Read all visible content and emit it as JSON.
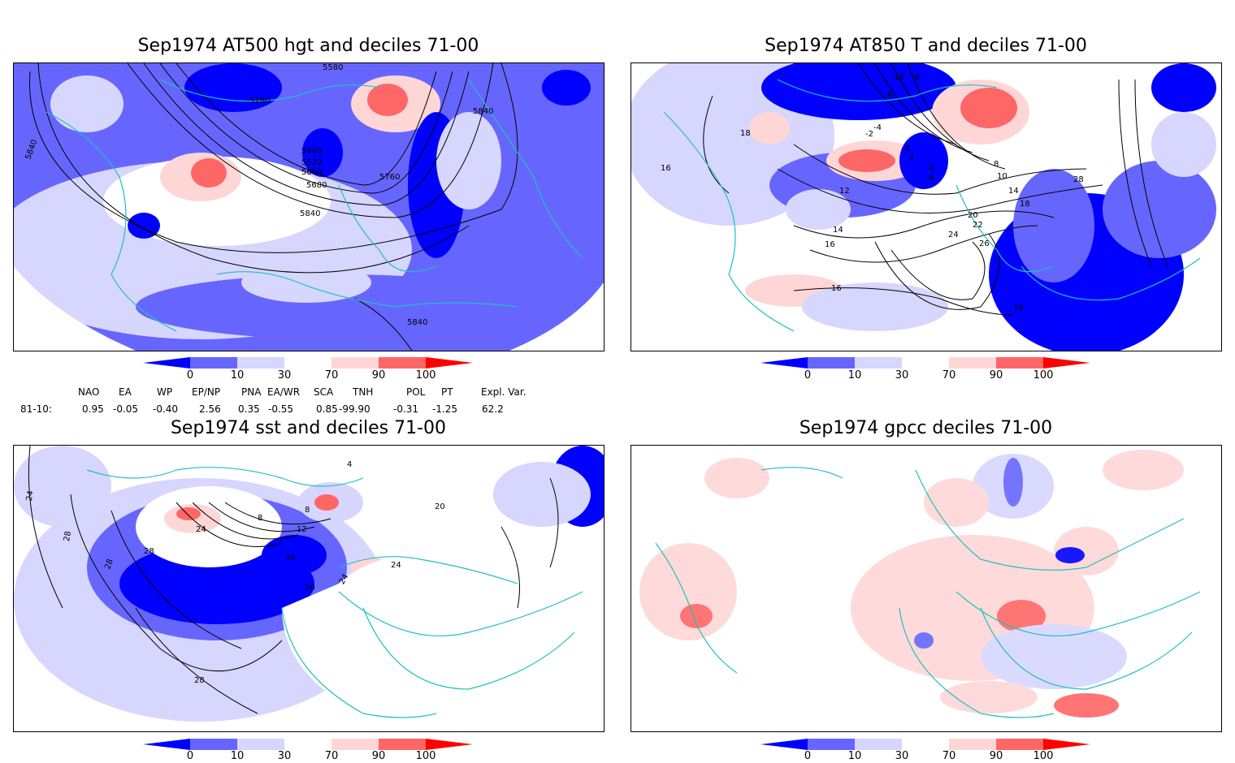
{
  "panels": [
    {
      "title": "Sep1974 AT500 hgt and deciles 71-00",
      "contour_labels": [
        "5280",
        "5440",
        "5520",
        "5600",
        "5680",
        "5760",
        "5840",
        "5840",
        "5840",
        "5840",
        "5580"
      ]
    },
    {
      "title": "Sep1974 AT850 T and deciles 71-00",
      "contour_labels": [
        "-10",
        "-8",
        "-6",
        "-4",
        "-2",
        "0",
        "2",
        "4",
        "6",
        "8",
        "10",
        "12",
        "14",
        "16",
        "18",
        "20",
        "22",
        "24",
        "26",
        "28",
        "18",
        "16",
        "14",
        "16",
        "16"
      ]
    },
    {
      "title": "Sep1974 sst and deciles 71-00",
      "contour_labels": [
        "24",
        "28",
        "28",
        "28",
        "24",
        "16",
        "20",
        "12",
        "8",
        "8",
        "4",
        "20",
        "24",
        "24",
        "28"
      ]
    },
    {
      "title": "Sep1974 gpcc deciles 71-00",
      "contour_labels": []
    }
  ],
  "colorbar": {
    "ticks": [
      "0",
      "10",
      "30",
      "70",
      "90",
      "100"
    ],
    "colors": [
      "#0000ff",
      "#6666ff",
      "#d6d6ff",
      "#ffffff",
      "#ffd6d6",
      "#ff6666",
      "#ff0000"
    ]
  },
  "indices": {
    "headers": [
      "NAO",
      "EA",
      "WP",
      "EP/NP",
      "PNA",
      "EA/WR",
      "SCA",
      "TNH",
      "POL",
      "PT",
      "Expl. Var."
    ],
    "row_label": "81-10:",
    "values": [
      "0.95",
      "-0.05",
      "-0.40",
      "2.56",
      "0.35",
      "-0.55",
      "0.85",
      "-99.90",
      "-0.31",
      "-1.25",
      "62.2"
    ]
  }
}
